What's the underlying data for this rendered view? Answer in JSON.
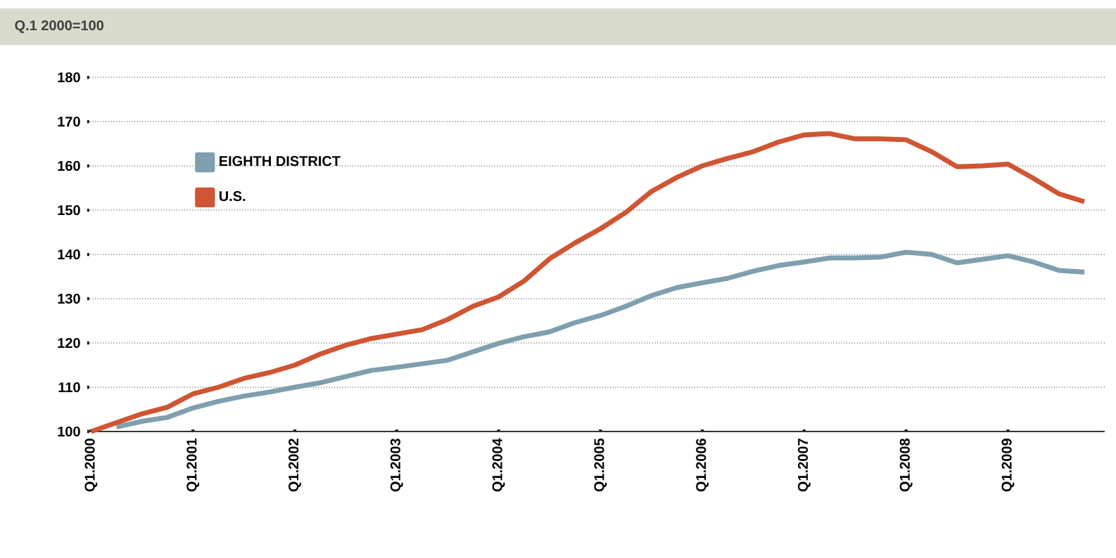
{
  "chart_data": {
    "type": "line",
    "title": "Q.1 2000=100",
    "categories": [
      "Q1.2000",
      null,
      null,
      null,
      "Q1.2001",
      null,
      null,
      null,
      "Q1.2002",
      null,
      null,
      null,
      "Q1.2003",
      null,
      null,
      null,
      "Q1.2004",
      null,
      null,
      null,
      "Q1.2005",
      null,
      null,
      null,
      "Q1.2006",
      null,
      null,
      null,
      "Q1.2007",
      null,
      null,
      null,
      "Q1.2008",
      null,
      null,
      null,
      "Q1.2009",
      null,
      null,
      null
    ],
    "series": [
      {
        "name": "EIGHTH DISTRICT",
        "color": "#7f9fae",
        "values": [
          null,
          101,
          102.3,
          103.2,
          105.3,
          106.8,
          108,
          108.9,
          110,
          111,
          112.4,
          113.8,
          114.5,
          115.3,
          116.1,
          118,
          119.9,
          121.4,
          122.5,
          124.6,
          126.2,
          128.3,
          130.7,
          132.5,
          133.6,
          134.6,
          136.2,
          137.5,
          138.3,
          139.2,
          139.2,
          139.4,
          140.5,
          140,
          138.1,
          138.9,
          139.7,
          138.3,
          136.4,
          136
        ]
      },
      {
        "name": "U.S.",
        "color": "#cf5533",
        "values": [
          100,
          102,
          104,
          105.5,
          108.5,
          110,
          112,
          113.3,
          115,
          117.5,
          119.5,
          121,
          122,
          123,
          125.3,
          128.3,
          130.4,
          134,
          139,
          142.6,
          145.8,
          149.5,
          154.2,
          157.4,
          160,
          161.7,
          163.2,
          165.4,
          167,
          167.3,
          166.1,
          166.1,
          165.9,
          163.2,
          159.8,
          160,
          160.4,
          157.2,
          153.7,
          151.9
        ]
      }
    ],
    "ylim": [
      100,
      180
    ],
    "yticks": [
      100,
      110,
      120,
      130,
      140,
      150,
      160,
      170,
      180
    ],
    "grid": "y",
    "legend": "top left",
    "marker": "none",
    "line_style": "solid"
  }
}
